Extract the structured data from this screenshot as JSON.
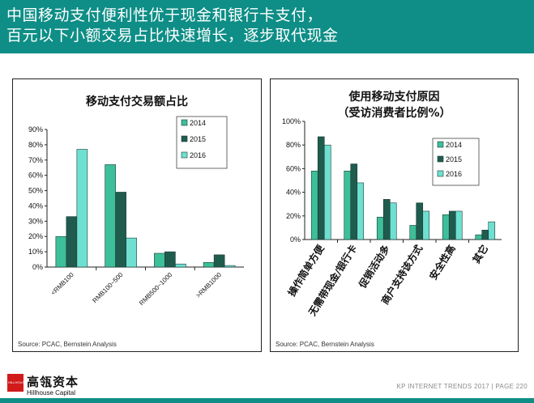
{
  "header": {
    "line1": "中国移动支付便利性优于现金和银行卡支付，",
    "line2": "百元以下小额交易占比快速增长，逐步取代现金"
  },
  "chart_data": [
    {
      "type": "bar",
      "title": "移动支付交易额占比",
      "categories": [
        "<RMB100",
        "RMB100~500",
        "RMB500~1000",
        ">RMB1000"
      ],
      "series": [
        {
          "name": "2014",
          "values": [
            20,
            67,
            9,
            3
          ]
        },
        {
          "name": "2015",
          "values": [
            33,
            49,
            10,
            8
          ]
        },
        {
          "name": "2016",
          "values": [
            77,
            19,
            2,
            1
          ]
        }
      ],
      "yticks": [
        "0%",
        "10%",
        "20%",
        "30%",
        "40%",
        "50%",
        "60%",
        "70%",
        "80%",
        "90%"
      ],
      "ylim": [
        0,
        90
      ],
      "legend": "top-right",
      "source": "Source: PCAC, Bernstein Analysis"
    },
    {
      "type": "bar",
      "title": "使用移动支付原因",
      "subtitle": "（受访消费者比例%）",
      "categories": [
        "操作简单方便",
        "无需带现金/银行卡",
        "促销活动多",
        "商户支持该方式",
        "安全性高",
        "其它"
      ],
      "series": [
        {
          "name": "2014",
          "values": [
            58,
            58,
            19,
            12,
            21,
            4
          ]
        },
        {
          "name": "2015",
          "values": [
            87,
            64,
            34,
            31,
            24,
            8
          ]
        },
        {
          "name": "2016",
          "values": [
            80,
            48,
            31,
            24,
            24,
            15
          ]
        }
      ],
      "yticks": [
        "0%",
        "20%",
        "40%",
        "60%",
        "80%",
        "100%"
      ],
      "ylim": [
        0,
        100
      ],
      "legend": "right",
      "source": "Source: PCAC, Bernstein Analysis"
    }
  ],
  "colors": {
    "header": "#0e8e86",
    "s2014": "#3dbf9a",
    "s2015": "#1f5c4e",
    "s2016": "#6ee0d2"
  },
  "footer": {
    "logo_cn": "高瓴资本",
    "logo_en": "Hillhouse Capital",
    "logo_mark": "HILLHOUSE",
    "right_text": "KP INTERNET TRENDS 2017  |  PAGE 220"
  }
}
